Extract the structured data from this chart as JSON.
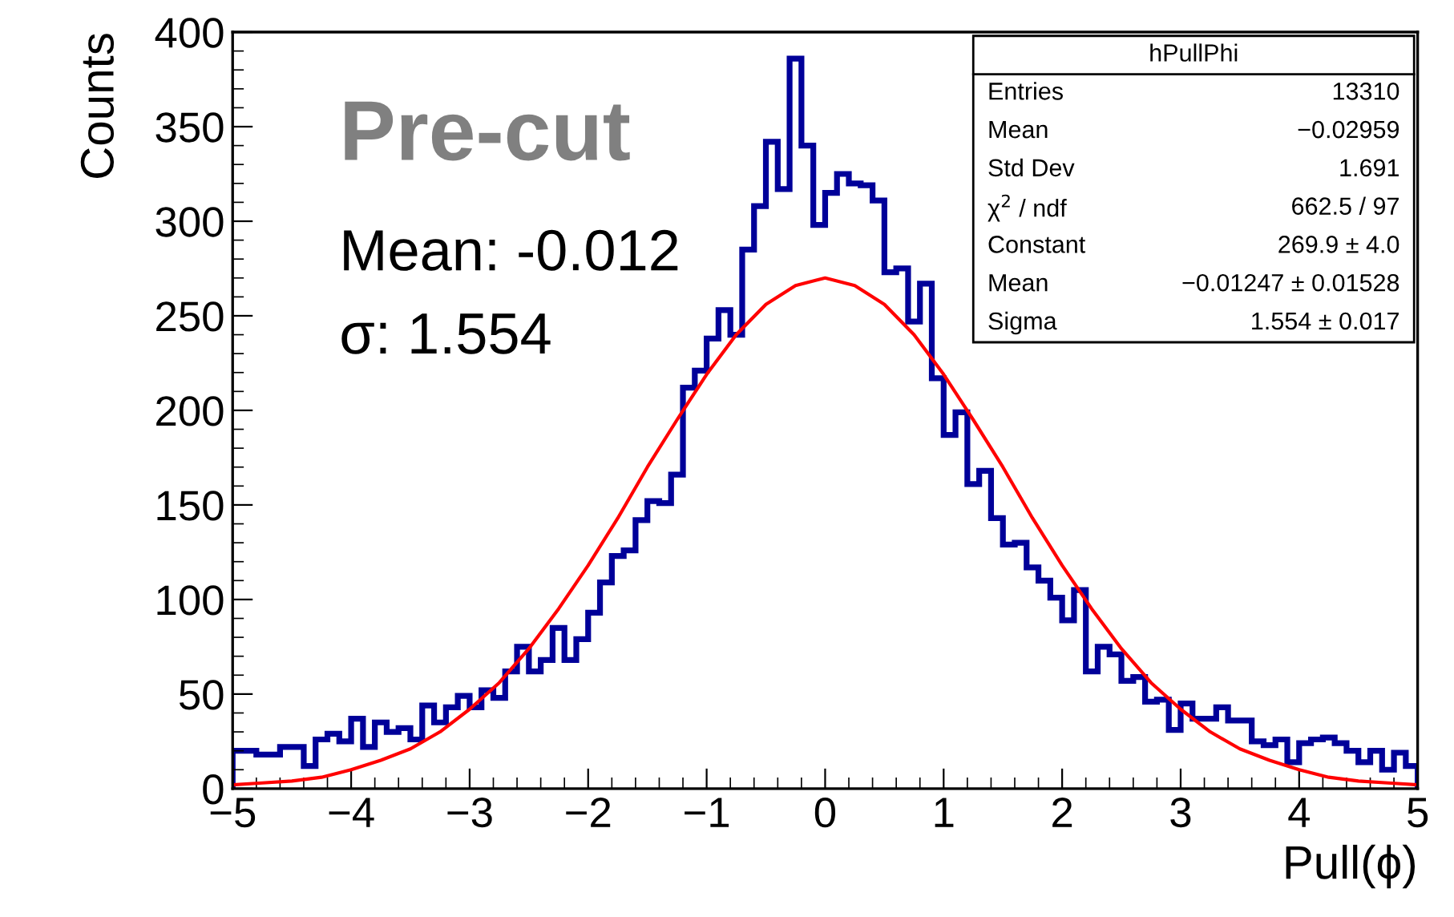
{
  "chart_data": {
    "type": "histogram",
    "xlabel": "Pull(ϕ)",
    "ylabel": "Counts",
    "xlim": [
      -5,
      5
    ],
    "ylim": [
      0,
      400
    ],
    "xticks": [
      {
        "value": -5,
        "label": "−5"
      },
      {
        "value": -4,
        "label": "−4"
      },
      {
        "value": -3,
        "label": "−3"
      },
      {
        "value": -2,
        "label": "−2"
      },
      {
        "value": -1,
        "label": "−1"
      },
      0,
      1,
      2,
      3,
      4,
      5
    ],
    "yticks": [
      0,
      50,
      100,
      150,
      200,
      250,
      300,
      350,
      400
    ],
    "series": [
      {
        "color": "#000099",
        "bins": [
          -5.0,
          -4.9,
          -4.8,
          -4.7,
          -4.6,
          -4.5,
          -4.4,
          -4.3,
          -4.2,
          -4.1,
          -4.0,
          -3.9,
          -3.8,
          -3.7,
          -3.6,
          -3.5,
          -3.4,
          -3.3,
          -3.2,
          -3.1,
          -3.0,
          -2.9,
          -2.8,
          -2.7,
          -2.6,
          -2.5,
          -2.4,
          -2.3,
          -2.2,
          -2.1,
          -2.0,
          -1.9,
          -1.8,
          -1.7,
          -1.6,
          -1.5,
          -1.4,
          -1.3,
          -1.2,
          -1.1,
          -1.0,
          -0.9,
          -0.8,
          -0.7,
          -0.6,
          -0.5,
          -0.4,
          -0.3,
          -0.2,
          -0.1,
          0.0,
          0.1,
          0.2,
          0.3,
          0.4,
          0.5,
          0.6,
          0.7,
          0.8,
          0.9,
          1.0,
          1.1,
          1.2,
          1.3,
          1.4,
          1.5,
          1.6,
          1.7,
          1.8,
          1.9,
          2.0,
          2.1,
          2.2,
          2.3,
          2.4,
          2.5,
          2.6,
          2.7,
          2.8,
          2.9,
          3.0,
          3.1,
          3.2,
          3.3,
          3.4,
          3.5,
          3.6,
          3.7,
          3.8,
          3.9,
          4.0,
          4.1,
          4.2,
          4.3,
          4.4,
          4.5,
          4.6,
          4.7,
          4.8,
          4.9,
          5.0
        ],
        "values": [
          20,
          20,
          18,
          18,
          22,
          22,
          12,
          26,
          29,
          25,
          37,
          22,
          35,
          30,
          32,
          26,
          44,
          35,
          43,
          49,
          43,
          52,
          48,
          62,
          75,
          62,
          68,
          85,
          68,
          79,
          93,
          109,
          123,
          126,
          142,
          152,
          151,
          166,
          212,
          221,
          238,
          253,
          240,
          285,
          308,
          342,
          317,
          386,
          340,
          298,
          315,
          325,
          320,
          319,
          311,
          273,
          275,
          247,
          267,
          217,
          187,
          199,
          161,
          168,
          143,
          129,
          130,
          117,
          110,
          101,
          89,
          105,
          62,
          75,
          71,
          57,
          59,
          46,
          47,
          31,
          45,
          37,
          37,
          43,
          36,
          36,
          25,
          23,
          26,
          14,
          24,
          26,
          27,
          24,
          20,
          14,
          20,
          10,
          19,
          12
        ]
      },
      {
        "type": "line",
        "color": "#ff0000",
        "x": [
          -5,
          -4.75,
          -4.5,
          -4.25,
          -4,
          -3.75,
          -3.5,
          -3.25,
          -3,
          -2.75,
          -2.5,
          -2.25,
          -2,
          -1.75,
          -1.5,
          -1.25,
          -1,
          -0.75,
          -0.5,
          -0.25,
          0,
          0.25,
          0.5,
          0.75,
          1,
          1.25,
          1.5,
          1.75,
          2,
          2.25,
          2.5,
          2.75,
          3,
          3.25,
          3.5,
          3.75,
          4,
          4.25,
          4.5,
          4.75,
          5
        ],
        "values": [
          2,
          3,
          4,
          6,
          10,
          15,
          21,
          30,
          42,
          56,
          74,
          95,
          118,
          143,
          170,
          195,
          219,
          240,
          256,
          266,
          270,
          266,
          256,
          240,
          219,
          195,
          170,
          143,
          118,
          95,
          74,
          56,
          42,
          30,
          21,
          15,
          10,
          6,
          4,
          3,
          2
        ]
      }
    ],
    "annotations": [
      "Pre-cut",
      "Mean: -0.012",
      "σ: 1.554",
      "hPullPhi",
      "Entries",
      "13310",
      "Mean",
      "−0.02959",
      "Std Dev",
      "1.691",
      "χ$^{2}$ / ndf",
      "662.5 / 97",
      "Constant",
      "269.9 ± 4.0",
      "Mean",
      "−0.01247 ± 0.01528",
      "Sigma",
      "1.554 ± 0.017"
    ]
  }
}
